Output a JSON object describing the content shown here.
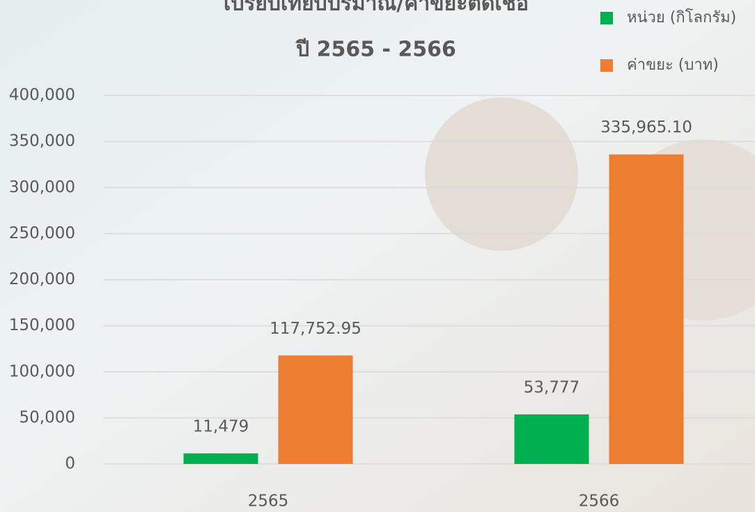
{
  "chart_data": {
    "type": "bar",
    "title": "เปรียบเทียบปริมาณ/ค่าขยะติดเชื้อ",
    "subtitle": "ปี 2565 - 2566",
    "categories": [
      "2565",
      "2566"
    ],
    "series": [
      {
        "name": "หน่วย (กิโลกรัม)",
        "color": "#00b050",
        "values": [
          11479,
          53777
        ],
        "value_labels": [
          "11,479",
          "53,777"
        ]
      },
      {
        "name": "ค่าขยะ (บาท)",
        "color": "#ed7d31",
        "values": [
          117752.95,
          335965.1
        ],
        "value_labels": [
          "117,752.95",
          "335,965.10"
        ]
      }
    ],
    "ylim": [
      0,
      400000
    ],
    "yticks": [
      0,
      {
        "value": 50000,
        "label": "50,000"
      },
      {
        "value": 100000,
        "label": "100,000"
      },
      {
        "value": 150000,
        "label": "150,000"
      },
      {
        "value": 200000,
        "label": "200,000"
      },
      {
        "value": 250000,
        "label": "250,000"
      },
      {
        "value": 300000,
        "label": "300,000"
      },
      {
        "value": 350000,
        "label": "350,000"
      },
      {
        "value": 400000,
        "label": "400,000"
      }
    ],
    "grid": true,
    "legend": "top-right"
  }
}
